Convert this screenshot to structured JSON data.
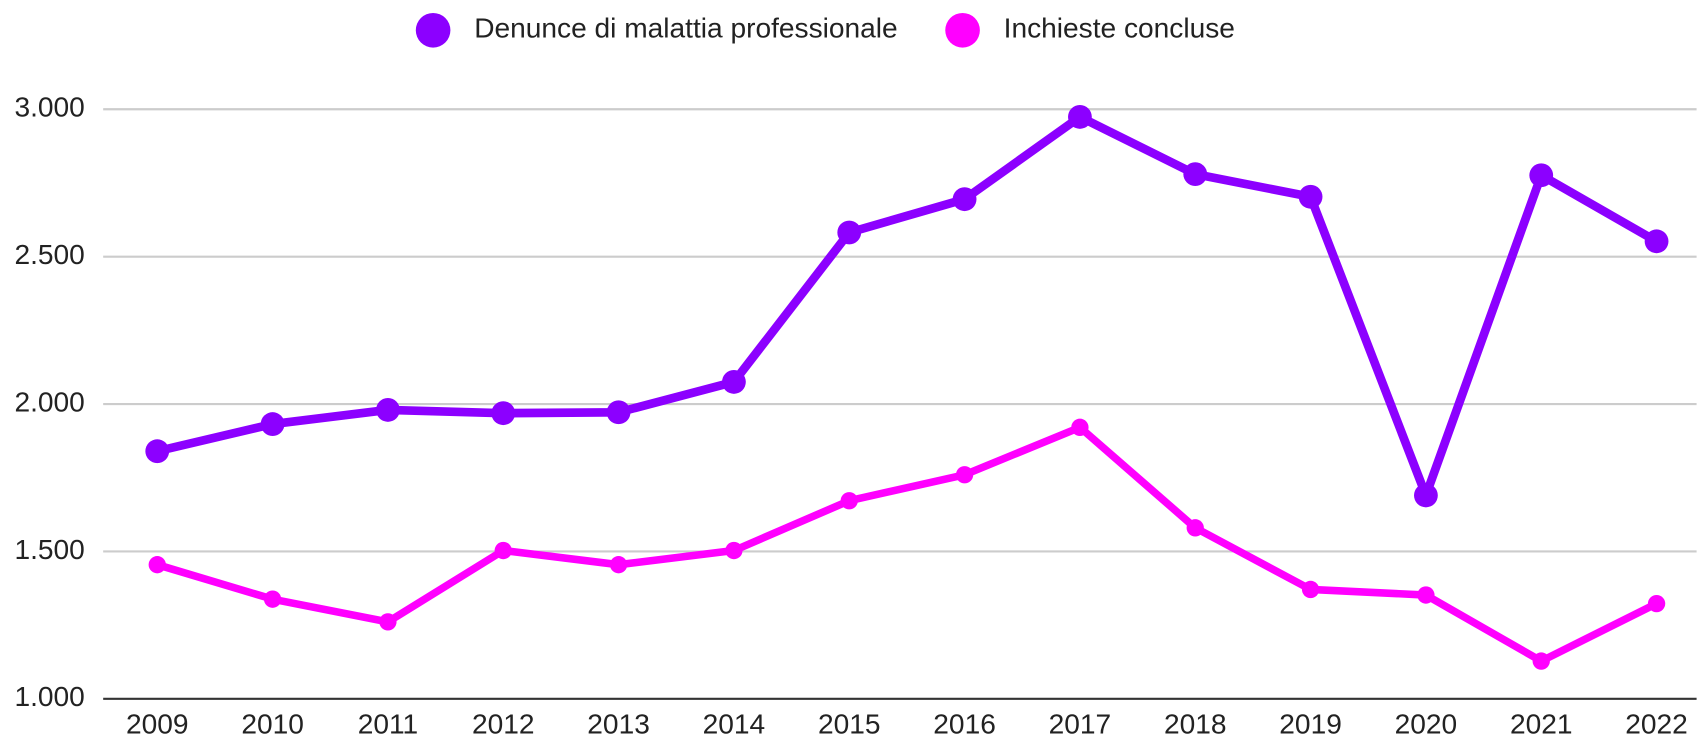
{
  "chart_data": {
    "type": "line",
    "categories": [
      "2009",
      "2010",
      "2011",
      "2012",
      "2013",
      "2014",
      "2015",
      "2016",
      "2017",
      "2018",
      "2019",
      "2020",
      "2021",
      "2022"
    ],
    "series": [
      {
        "name": "Denunce di malattia professionale",
        "color": "#8c00ff",
        "values": [
          1840,
          1932,
          1980,
          1969,
          1972,
          2075,
          2582,
          2695,
          2974,
          2780,
          2703,
          1690,
          2776,
          2552
        ]
      },
      {
        "name": "Inchieste concluse",
        "color": "#ff00ff",
        "values": [
          1455,
          1338,
          1261,
          1503,
          1455,
          1503,
          1672,
          1760,
          1921,
          1580,
          1371,
          1352,
          1128,
          1323
        ]
      }
    ],
    "ylim": [
      1000,
      3000
    ],
    "yticks": [
      {
        "value": 1000,
        "label": "1.000"
      },
      {
        "value": 1500,
        "label": "1.500"
      },
      {
        "value": 2000,
        "label": "2.000"
      },
      {
        "value": 2500,
        "label": "2.500"
      },
      {
        "value": 3000,
        "label": "3.000"
      }
    ],
    "grid": true,
    "legend": "top"
  }
}
